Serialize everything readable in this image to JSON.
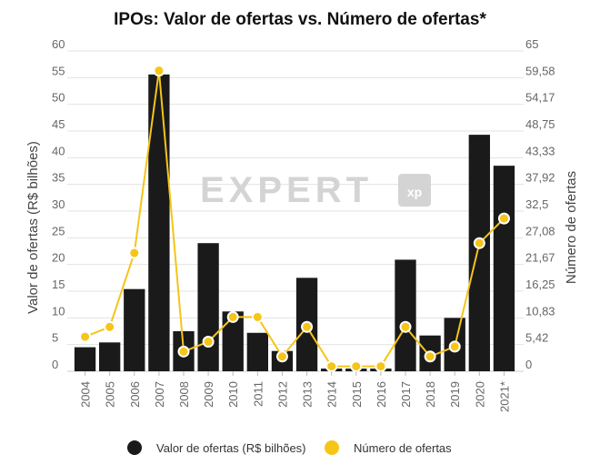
{
  "chart_data": {
    "type": "bar",
    "title": "IPOs: Valor de ofertas vs. Número de ofertas*",
    "categories": [
      "2004",
      "2005",
      "2006",
      "2007",
      "2008",
      "2009",
      "2010",
      "2011",
      "2012",
      "2013",
      "2014",
      "2015",
      "2016",
      "2017",
      "2018",
      "2019",
      "2020",
      "2021*"
    ],
    "y_left": {
      "label": "Valor de ofertas (R$ bilhões)",
      "ylim": [
        0,
        60
      ],
      "ticks": [
        "0",
        "5",
        "10",
        "15",
        "20",
        "25",
        "30",
        "35",
        "40",
        "45",
        "50",
        "55",
        "60"
      ]
    },
    "y_right": {
      "label": "Número de ofertas",
      "ylim": [
        0,
        65
      ],
      "ticks": [
        "0",
        "5,42",
        "10,83",
        "16,25",
        "21,67",
        "27,08",
        "32,5",
        "37,92",
        "43,33",
        "48,75",
        "54,17",
        "59,58",
        "65"
      ]
    },
    "series": [
      {
        "name": "Valor de ofertas (R$ bilhões)",
        "type": "bar",
        "axis": "left",
        "color": "#1a1a1a",
        "values": [
          4.5,
          5.4,
          15.4,
          55.6,
          7.5,
          24.0,
          11.2,
          7.2,
          3.8,
          17.5,
          0.5,
          0.5,
          0.5,
          20.9,
          6.7,
          10.0,
          44.3,
          38.5
        ]
      },
      {
        "name": "Número de ofertas",
        "type": "line",
        "axis": "right",
        "color": "#f5c518",
        "values": [
          7,
          9,
          24,
          61,
          4,
          6,
          11,
          11,
          3,
          9,
          1,
          1,
          1,
          9,
          3,
          5,
          26,
          31
        ]
      }
    ],
    "grid": true,
    "legend_position": "bottom",
    "watermark": "EXPERT",
    "watermark_logo": "xp"
  }
}
